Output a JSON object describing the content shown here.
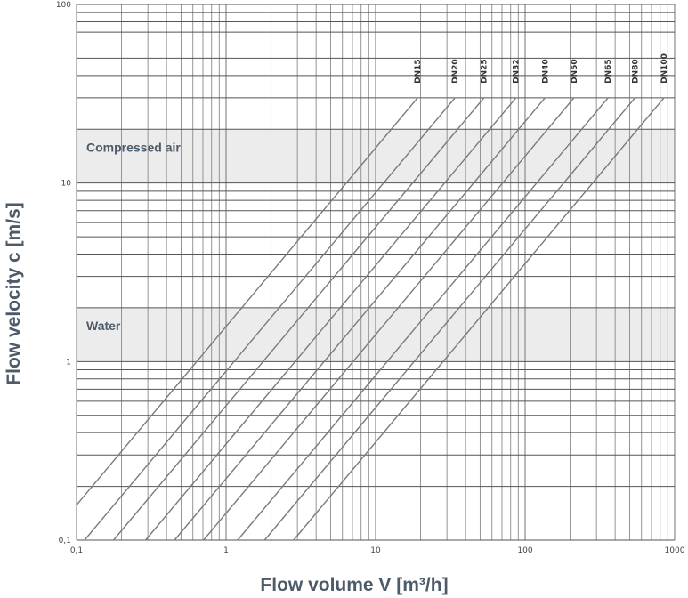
{
  "chart_data": {
    "type": "line",
    "xlabel": "Flow volume V [m³/h]",
    "ylabel": "Flow velocity c [m/s]",
    "x_scale": "log",
    "y_scale": "log",
    "xlim": [
      0.1,
      1000
    ],
    "ylim": [
      0.1,
      100
    ],
    "grid": true,
    "x_ticks": [
      "0,1",
      "1",
      "10",
      "100",
      "1000"
    ],
    "x_tick_values": [
      0.1,
      1,
      10,
      100,
      1000
    ],
    "y_ticks": [
      "0,1",
      "1",
      "10",
      "100"
    ],
    "y_tick_values": [
      0.1,
      1,
      10,
      100
    ],
    "line_max_velocity": 30,
    "bands": [
      {
        "label": "Compressed air",
        "c_min": 10,
        "c_max": 20,
        "color": "#ececec"
      },
      {
        "label": "Water",
        "c_min": 1,
        "c_max": 2,
        "color": "#ececec"
      }
    ],
    "series": [
      {
        "name": "DN15",
        "diameter_mm": 15
      },
      {
        "name": "DN20",
        "diameter_mm": 20
      },
      {
        "name": "DN25",
        "diameter_mm": 25
      },
      {
        "name": "DN32",
        "diameter_mm": 32
      },
      {
        "name": "DN40",
        "diameter_mm": 40
      },
      {
        "name": "DN50",
        "diameter_mm": 50
      },
      {
        "name": "DN65",
        "diameter_mm": 65
      },
      {
        "name": "DN80",
        "diameter_mm": 80
      },
      {
        "name": "DN100",
        "diameter_mm": 100
      }
    ],
    "colors": {
      "grid": "#8a8a8a",
      "line": "#7a7a7a",
      "title": "#4d5b69"
    }
  }
}
